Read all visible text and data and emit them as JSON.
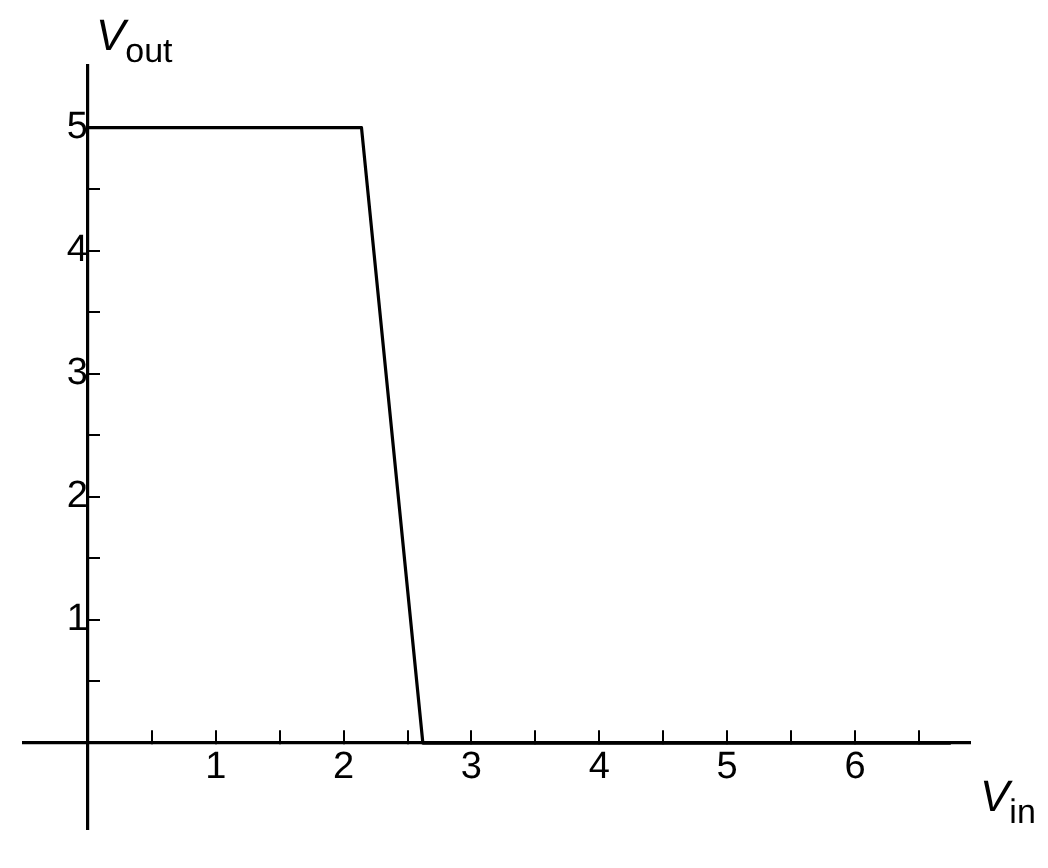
{
  "chart_data": {
    "type": "line",
    "xlabel": "V$_{in}$",
    "ylabel": "V$_{out}$",
    "x": [
      0,
      2.14,
      2.62,
      6.75
    ],
    "series": [
      {
        "color": "#000000",
        "values": [
          5,
          5,
          0,
          0
        ]
      }
    ],
    "xlim": [
      -0.5,
      6.9
    ],
    "ylim": [
      -0.7,
      5.5
    ],
    "xticks": [
      {
        "value": 0.5,
        "label": null
      },
      1,
      {
        "value": 1.5,
        "label": null
      },
      2,
      {
        "value": 2.5,
        "label": null
      },
      3,
      {
        "value": 3.5,
        "label": null
      },
      4,
      {
        "value": 4.5,
        "label": null
      },
      5,
      {
        "value": 5.5,
        "label": null
      },
      6,
      {
        "value": 6.5,
        "label": null
      }
    ],
    "yticks": [
      {
        "value": 0.5,
        "label": null
      },
      1,
      {
        "value": 1.5,
        "label": null
      },
      2,
      {
        "value": 2.5,
        "label": null
      },
      3,
      {
        "value": 3.5,
        "label": null
      },
      4,
      {
        "value": 4.5,
        "label": null
      },
      5
    ],
    "grid": false,
    "legend": false,
    "marker": "none",
    "line_style": "solid"
  }
}
